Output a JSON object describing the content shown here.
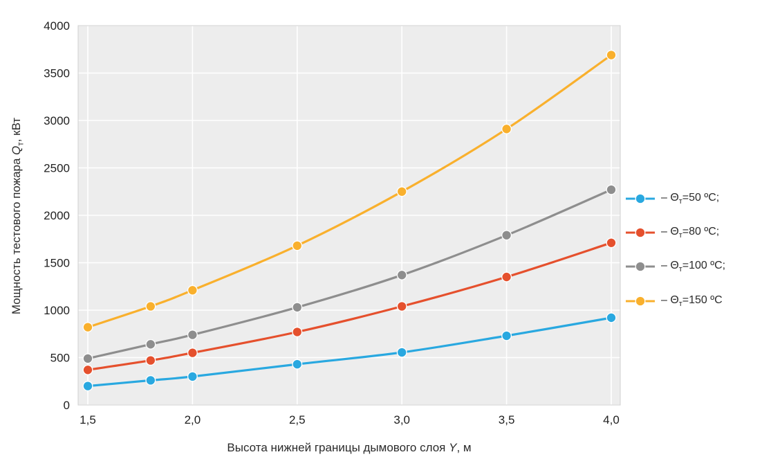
{
  "chart_data": {
    "type": "line",
    "title": "",
    "xlabel": "Высота нижней границы дымового слоя Y, м",
    "ylabel": "Мощность тестового пожара Qт, кВт",
    "x": [
      1.5,
      1.8,
      2.0,
      2.5,
      3.0,
      3.5,
      4.0
    ],
    "xlim": [
      1.5,
      4.0
    ],
    "ylim": [
      0,
      4000
    ],
    "x_tick_values": [
      1.5,
      2.0,
      2.5,
      3.0,
      3.5,
      4.0
    ],
    "x_tick_labels": [
      "1,5",
      "2,0",
      "2,5",
      "3,0",
      "3,5",
      "4,0"
    ],
    "y_ticks": [
      0,
      500,
      1000,
      1500,
      2000,
      2500,
      3000,
      3500,
      4000
    ],
    "grid": true,
    "legend_position": "right",
    "series": [
      {
        "name": "Θт=50 ºC",
        "label_pre": "– Θ",
        "label_sub": "т",
        "label_post": "=50 ºC;",
        "color": "#29A8E0",
        "values": [
          200,
          260,
          300,
          430,
          555,
          730,
          920
        ]
      },
      {
        "name": "Θт=80 ºC",
        "label_pre": "– Θ",
        "label_sub": "т",
        "label_post": "=80 ºC;",
        "color": "#E5502D",
        "values": [
          370,
          470,
          550,
          770,
          1040,
          1350,
          1710
        ]
      },
      {
        "name": "Θт=100 ºC",
        "label_pre": "– Θ",
        "label_sub": "т",
        "label_post": "=100 ºC;",
        "color": "#8E8E8E",
        "values": [
          490,
          640,
          740,
          1030,
          1370,
          1790,
          2270
        ]
      },
      {
        "name": "Θт=150 ºC",
        "label_pre": "– Θ",
        "label_sub": "т",
        "label_post": "=150 ºC",
        "color": "#F9B02D",
        "values": [
          820,
          1040,
          1210,
          1680,
          2250,
          2910,
          3690
        ]
      }
    ]
  },
  "axes": {
    "y": {
      "label_pre": "Мощность тестового пожара ",
      "label_var": "Q",
      "label_sub": "т",
      "label_post": ", кВт"
    },
    "x": {
      "label_pre": "Высота нижней границы дымового слоя ",
      "label_var": "Y",
      "label_post": ", м"
    }
  },
  "colors": {
    "plot_background": "#EDEDED",
    "gridline": "#FFFFFF",
    "border": "#CFCFCF",
    "tick_text": "#1F1F1F",
    "marker_edge": "#FFFFFF"
  }
}
